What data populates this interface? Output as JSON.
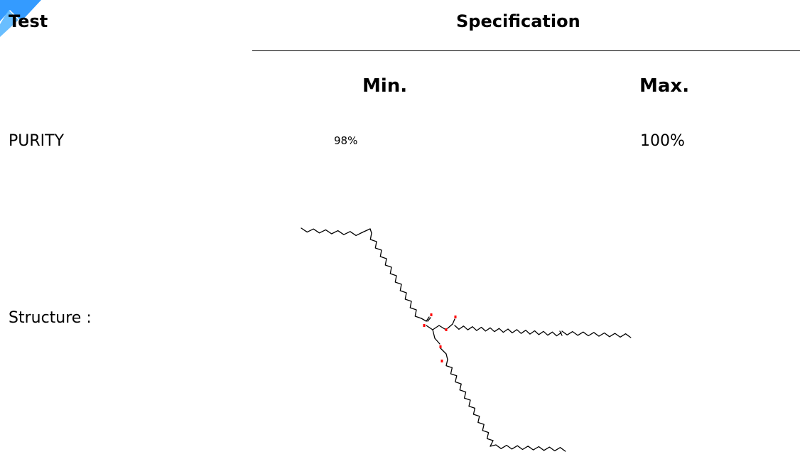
{
  "table": {
    "header_test": "Test",
    "header_specification": "Specification",
    "header_min": "Min.",
    "header_max": "Max.",
    "rows": [
      {
        "test": "PURITY",
        "min": "98%",
        "max": "100%"
      }
    ]
  },
  "structure": {
    "label": "Structure :",
    "icon": "chemical-structure-triglyceride"
  },
  "colors": {
    "corner_mark": "#1e90ff",
    "bond": "#000000",
    "oxygen": "#ff0000"
  }
}
